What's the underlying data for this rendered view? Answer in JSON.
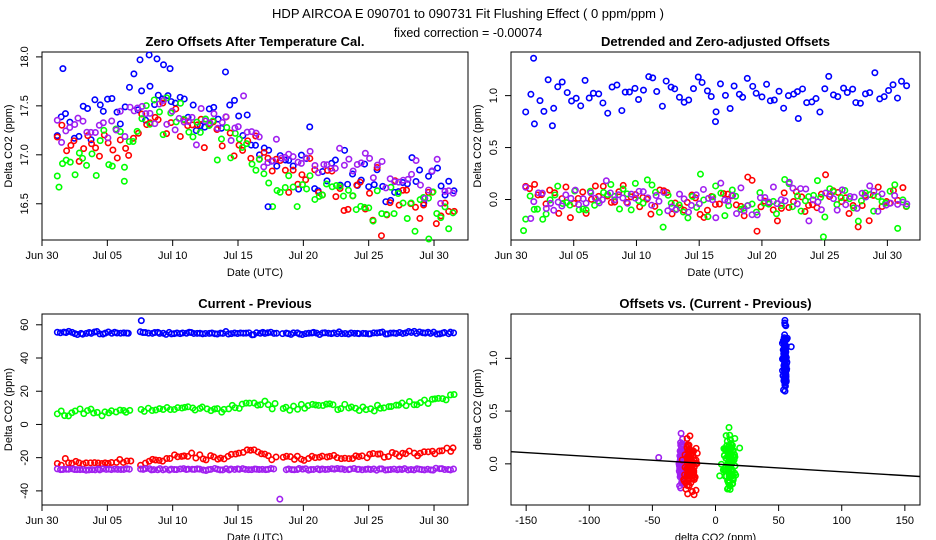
{
  "header": {
    "title": "HDP   AIRCOA E   090701 to 090731   Fit Flushing Effect ( 0 ppm/ppm )",
    "subtitle": "fixed correction = -0.00074"
  },
  "colors": {
    "blue": "#0000ff",
    "red": "#ff0000",
    "green": "#00ff00",
    "purple": "#a020f0",
    "axis": "#000000"
  },
  "chart_data": [
    {
      "type": "scatter",
      "title": "Zero Offsets After Temperature Cal.",
      "xlabel": "Date (UTC)",
      "ylabel": "Delta CO2 (ppm)",
      "xlim": [
        30.0,
        62.6
      ],
      "ylim": [
        16.13,
        18.05
      ],
      "xticks": [
        {
          "v": 30,
          "label": "Jun 30"
        },
        {
          "v": 35,
          "label": "Jul 05"
        },
        {
          "v": 40,
          "label": "Jul 10"
        },
        {
          "v": 45,
          "label": "Jul 15"
        },
        {
          "v": 50,
          "label": "Jul 20"
        },
        {
          "v": 55,
          "label": "Jul 25"
        },
        {
          "v": 60,
          "label": "Jul 30"
        }
      ],
      "yticks": [
        {
          "v": 16.5,
          "label": "16.5"
        },
        {
          "v": 17.0,
          "label": "17.0"
        },
        {
          "v": 17.5,
          "label": "17.5"
        },
        {
          "v": 18.0,
          "label": "18.0"
        }
      ],
      "series": [
        {
          "name": "blue",
          "color": "blue",
          "trend": [
            [
              31.2,
              17.32
            ],
            [
              36,
              17.45
            ],
            [
              38.5,
              17.75
            ],
            [
              42,
              17.35
            ],
            [
              45,
              17.4
            ],
            [
              48,
              16.95
            ],
            [
              52,
              16.85
            ],
            [
              56,
              16.72
            ],
            [
              61.5,
              16.65
            ]
          ],
          "noise": 0.13,
          "n": 95,
          "seed": 11
        },
        {
          "name": "red",
          "color": "red",
          "trend": [
            [
              31.2,
              17.05
            ],
            [
              36,
              17.15
            ],
            [
              39,
              17.38
            ],
            [
              42,
              17.25
            ],
            [
              45,
              17.15
            ],
            [
              48,
              16.85
            ],
            [
              52,
              16.7
            ],
            [
              56,
              16.5
            ],
            [
              61.5,
              16.45
            ]
          ],
          "noise": 0.11,
          "n": 95,
          "seed": 22
        },
        {
          "name": "green",
          "color": "green",
          "trend": [
            [
              31.2,
              16.95
            ],
            [
              36,
              17.05
            ],
            [
              39,
              17.4
            ],
            [
              42,
              17.3
            ],
            [
              45,
              17.05
            ],
            [
              48,
              16.7
            ],
            [
              52,
              16.6
            ],
            [
              56,
              16.45
            ],
            [
              61.5,
              16.45
            ]
          ],
          "noise": 0.12,
          "n": 95,
          "seed": 33
        },
        {
          "name": "purple",
          "color": "purple",
          "trend": [
            [
              31.2,
              17.2
            ],
            [
              36,
              17.35
            ],
            [
              39,
              17.45
            ],
            [
              42,
              17.35
            ],
            [
              45,
              17.3
            ],
            [
              48,
              17.0
            ],
            [
              52,
              16.95
            ],
            [
              56,
              16.8
            ],
            [
              61.5,
              16.65
            ]
          ],
          "noise": 0.1,
          "n": 95,
          "seed": 44
        }
      ],
      "extra_points": [
        {
          "color": "blue",
          "x": 31.6,
          "y": 17.88
        },
        {
          "color": "blue",
          "x": 37.5,
          "y": 17.97
        },
        {
          "color": "blue",
          "x": 38.2,
          "y": 18.02
        },
        {
          "color": "blue",
          "x": 38.8,
          "y": 17.98
        },
        {
          "color": "blue",
          "x": 39.3,
          "y": 17.92
        },
        {
          "color": "blue",
          "x": 39.8,
          "y": 17.88
        },
        {
          "color": "blue",
          "x": 47.3,
          "y": 16.47
        },
        {
          "color": "green",
          "x": 31.3,
          "y": 16.67
        },
        {
          "color": "green",
          "x": 36.3,
          "y": 16.73
        },
        {
          "color": "green",
          "x": 59.6,
          "y": 16.14
        }
      ]
    },
    {
      "type": "scatter",
      "title": "Detrended and Zero-adjusted Offsets",
      "xlabel": "Date (UTC)",
      "ylabel": "Delta CO2 (ppm)",
      "xlim": [
        30.0,
        62.6
      ],
      "ylim": [
        -0.39,
        1.42
      ],
      "xticks": [
        {
          "v": 30,
          "label": "Jun 30"
        },
        {
          "v": 35,
          "label": "Jul 05"
        },
        {
          "v": 40,
          "label": "Jul 10"
        },
        {
          "v": 45,
          "label": "Jul 15"
        },
        {
          "v": 50,
          "label": "Jul 20"
        },
        {
          "v": 55,
          "label": "Jul 25"
        },
        {
          "v": 60,
          "label": "Jul 30"
        }
      ],
      "yticks": [
        {
          "v": 0.0,
          "label": "0.0"
        },
        {
          "v": 0.5,
          "label": "0.5"
        },
        {
          "v": 1.0,
          "label": "1.0"
        }
      ],
      "series": [
        {
          "name": "blue",
          "color": "blue",
          "trend": [
            [
              31.2,
              1.02
            ],
            [
              61.5,
              1.02
            ]
          ],
          "noise": 0.11,
          "n": 85,
          "seed": 55
        },
        {
          "name": "red",
          "color": "red",
          "trend": [
            [
              31.2,
              -0.02
            ],
            [
              61.5,
              -0.02
            ]
          ],
          "noise": 0.09,
          "n": 95,
          "seed": 66
        },
        {
          "name": "green",
          "color": "green",
          "trend": [
            [
              31.2,
              0.0
            ],
            [
              61.5,
              0.0
            ]
          ],
          "noise": 0.12,
          "n": 95,
          "seed": 77
        },
        {
          "name": "purple",
          "color": "purple",
          "trend": [
            [
              31.2,
              0.0
            ],
            [
              61.5,
              0.0
            ]
          ],
          "noise": 0.08,
          "n": 95,
          "seed": 88
        }
      ],
      "extra_points": [
        {
          "color": "blue",
          "x": 31.8,
          "y": 1.36
        },
        {
          "color": "blue",
          "x": 33.3,
          "y": 0.71
        },
        {
          "color": "blue",
          "x": 46.3,
          "y": 0.75
        },
        {
          "color": "blue",
          "x": 52.9,
          "y": 0.78
        },
        {
          "color": "green",
          "x": 31.0,
          "y": -0.3
        },
        {
          "color": "green",
          "x": 54.9,
          "y": -0.36
        }
      ]
    },
    {
      "type": "scatter",
      "title": "Current - Previous",
      "xlabel": "Date (UTC)",
      "ylabel": "Delta CO2 (ppm)",
      "xlim": [
        30.0,
        62.6
      ],
      "ylim": [
        -48.5,
        66.5
      ],
      "xticks": [
        {
          "v": 30,
          "label": "Jun 30"
        },
        {
          "v": 35,
          "label": "Jul 05"
        },
        {
          "v": 40,
          "label": "Jul 10"
        },
        {
          "v": 45,
          "label": "Jul 15"
        },
        {
          "v": 50,
          "label": "Jul 20"
        },
        {
          "v": 55,
          "label": "Jul 25"
        },
        {
          "v": 60,
          "label": "Jul 30"
        }
      ],
      "yticks": [
        {
          "v": -40,
          "label": "-40"
        },
        {
          "v": -20,
          "label": "-20"
        },
        {
          "v": 0,
          "label": "0"
        },
        {
          "v": 20,
          "label": "20"
        },
        {
          "v": 40,
          "label": "40"
        },
        {
          "v": 60,
          "label": "60"
        }
      ],
      "gaps": [
        [
          36.8,
          37.4
        ],
        [
          48.0,
          48.4
        ]
      ],
      "series": [
        {
          "name": "blue",
          "color": "blue",
          "trend": [
            [
              31.2,
              55.0
            ],
            [
              61.5,
              55.0
            ]
          ],
          "noise": 0.4,
          "n": 140,
          "seed": 101
        },
        {
          "name": "green",
          "color": "green",
          "trend": [
            [
              31.2,
              7.0
            ],
            [
              36,
              7.5
            ],
            [
              39,
              9.5
            ],
            [
              44,
              9.0
            ],
            [
              46,
              14.0
            ],
            [
              48,
              10.0
            ],
            [
              52,
              11.5
            ],
            [
              55,
              9.0
            ],
            [
              61.5,
              16.0
            ]
          ],
          "noise": 1.0,
          "n": 110,
          "seed": 102
        },
        {
          "name": "red",
          "color": "red",
          "trend": [
            [
              31.2,
              -23.0
            ],
            [
              38,
              -23.0
            ],
            [
              40,
              -19.0
            ],
            [
              44,
              -20.0
            ],
            [
              46,
              -15.0
            ],
            [
              48,
              -20.5
            ],
            [
              55,
              -19.0
            ],
            [
              61.5,
              -15.5
            ]
          ],
          "noise": 0.9,
          "n": 110,
          "seed": 103
        },
        {
          "name": "purple",
          "color": "purple",
          "trend": [
            [
              31.2,
              -27.0
            ],
            [
              61.5,
              -27.0
            ]
          ],
          "noise": 0.3,
          "n": 140,
          "seed": 104
        }
      ],
      "extra_points": [
        {
          "color": "blue",
          "x": 37.6,
          "y": 62.5
        },
        {
          "color": "purple",
          "x": 48.2,
          "y": -45.0
        }
      ]
    },
    {
      "type": "scatter",
      "title": "Offsets vs. (Current - Previous)",
      "xlabel": "delta CO2 (ppm)",
      "ylabel": "delta CO2 (ppm)",
      "xlim": [
        -162,
        162
      ],
      "ylim": [
        -0.39,
        1.42
      ],
      "xticks": [
        {
          "v": -150,
          "label": "-150"
        },
        {
          "v": -100,
          "label": "-100"
        },
        {
          "v": -50,
          "label": "-50"
        },
        {
          "v": 0,
          "label": "0"
        },
        {
          "v": 50,
          "label": "50"
        },
        {
          "v": 100,
          "label": "100"
        },
        {
          "v": 150,
          "label": "150"
        }
      ],
      "yticks": [
        {
          "v": 0.0,
          "label": "0.0"
        },
        {
          "v": 0.5,
          "label": "0.5"
        },
        {
          "v": 1.0,
          "label": "1.0"
        }
      ],
      "clusters": [
        {
          "name": "blue",
          "color": "blue",
          "x_center": 55,
          "x_spread": 0.8,
          "y_center": 1.0,
          "y_spread": 0.17,
          "n": 90,
          "seed": 201
        },
        {
          "name": "purple",
          "color": "purple",
          "x_center": -27,
          "x_spread": 0.8,
          "y_center": 0.0,
          "y_spread": 0.1,
          "n": 90,
          "seed": 202
        },
        {
          "name": "red",
          "color": "red",
          "x_center": -20,
          "x_spread": 2.4,
          "y_center": -0.02,
          "y_spread": 0.12,
          "n": 100,
          "seed": 203
        },
        {
          "name": "green",
          "color": "green",
          "x_center": 11,
          "x_spread": 2.8,
          "y_center": 0.0,
          "y_spread": 0.12,
          "n": 100,
          "seed": 204
        }
      ],
      "extra_points": [
        {
          "color": "blue",
          "x": 60.0,
          "y": 1.11
        },
        {
          "color": "blue",
          "x": 55.0,
          "y": 1.36
        },
        {
          "color": "purple",
          "x": -45.0,
          "y": 0.06
        }
      ],
      "fit_line": {
        "x": [
          -162,
          162
        ],
        "y": [
          0.115,
          -0.12
        ],
        "color": "axis"
      }
    }
  ]
}
